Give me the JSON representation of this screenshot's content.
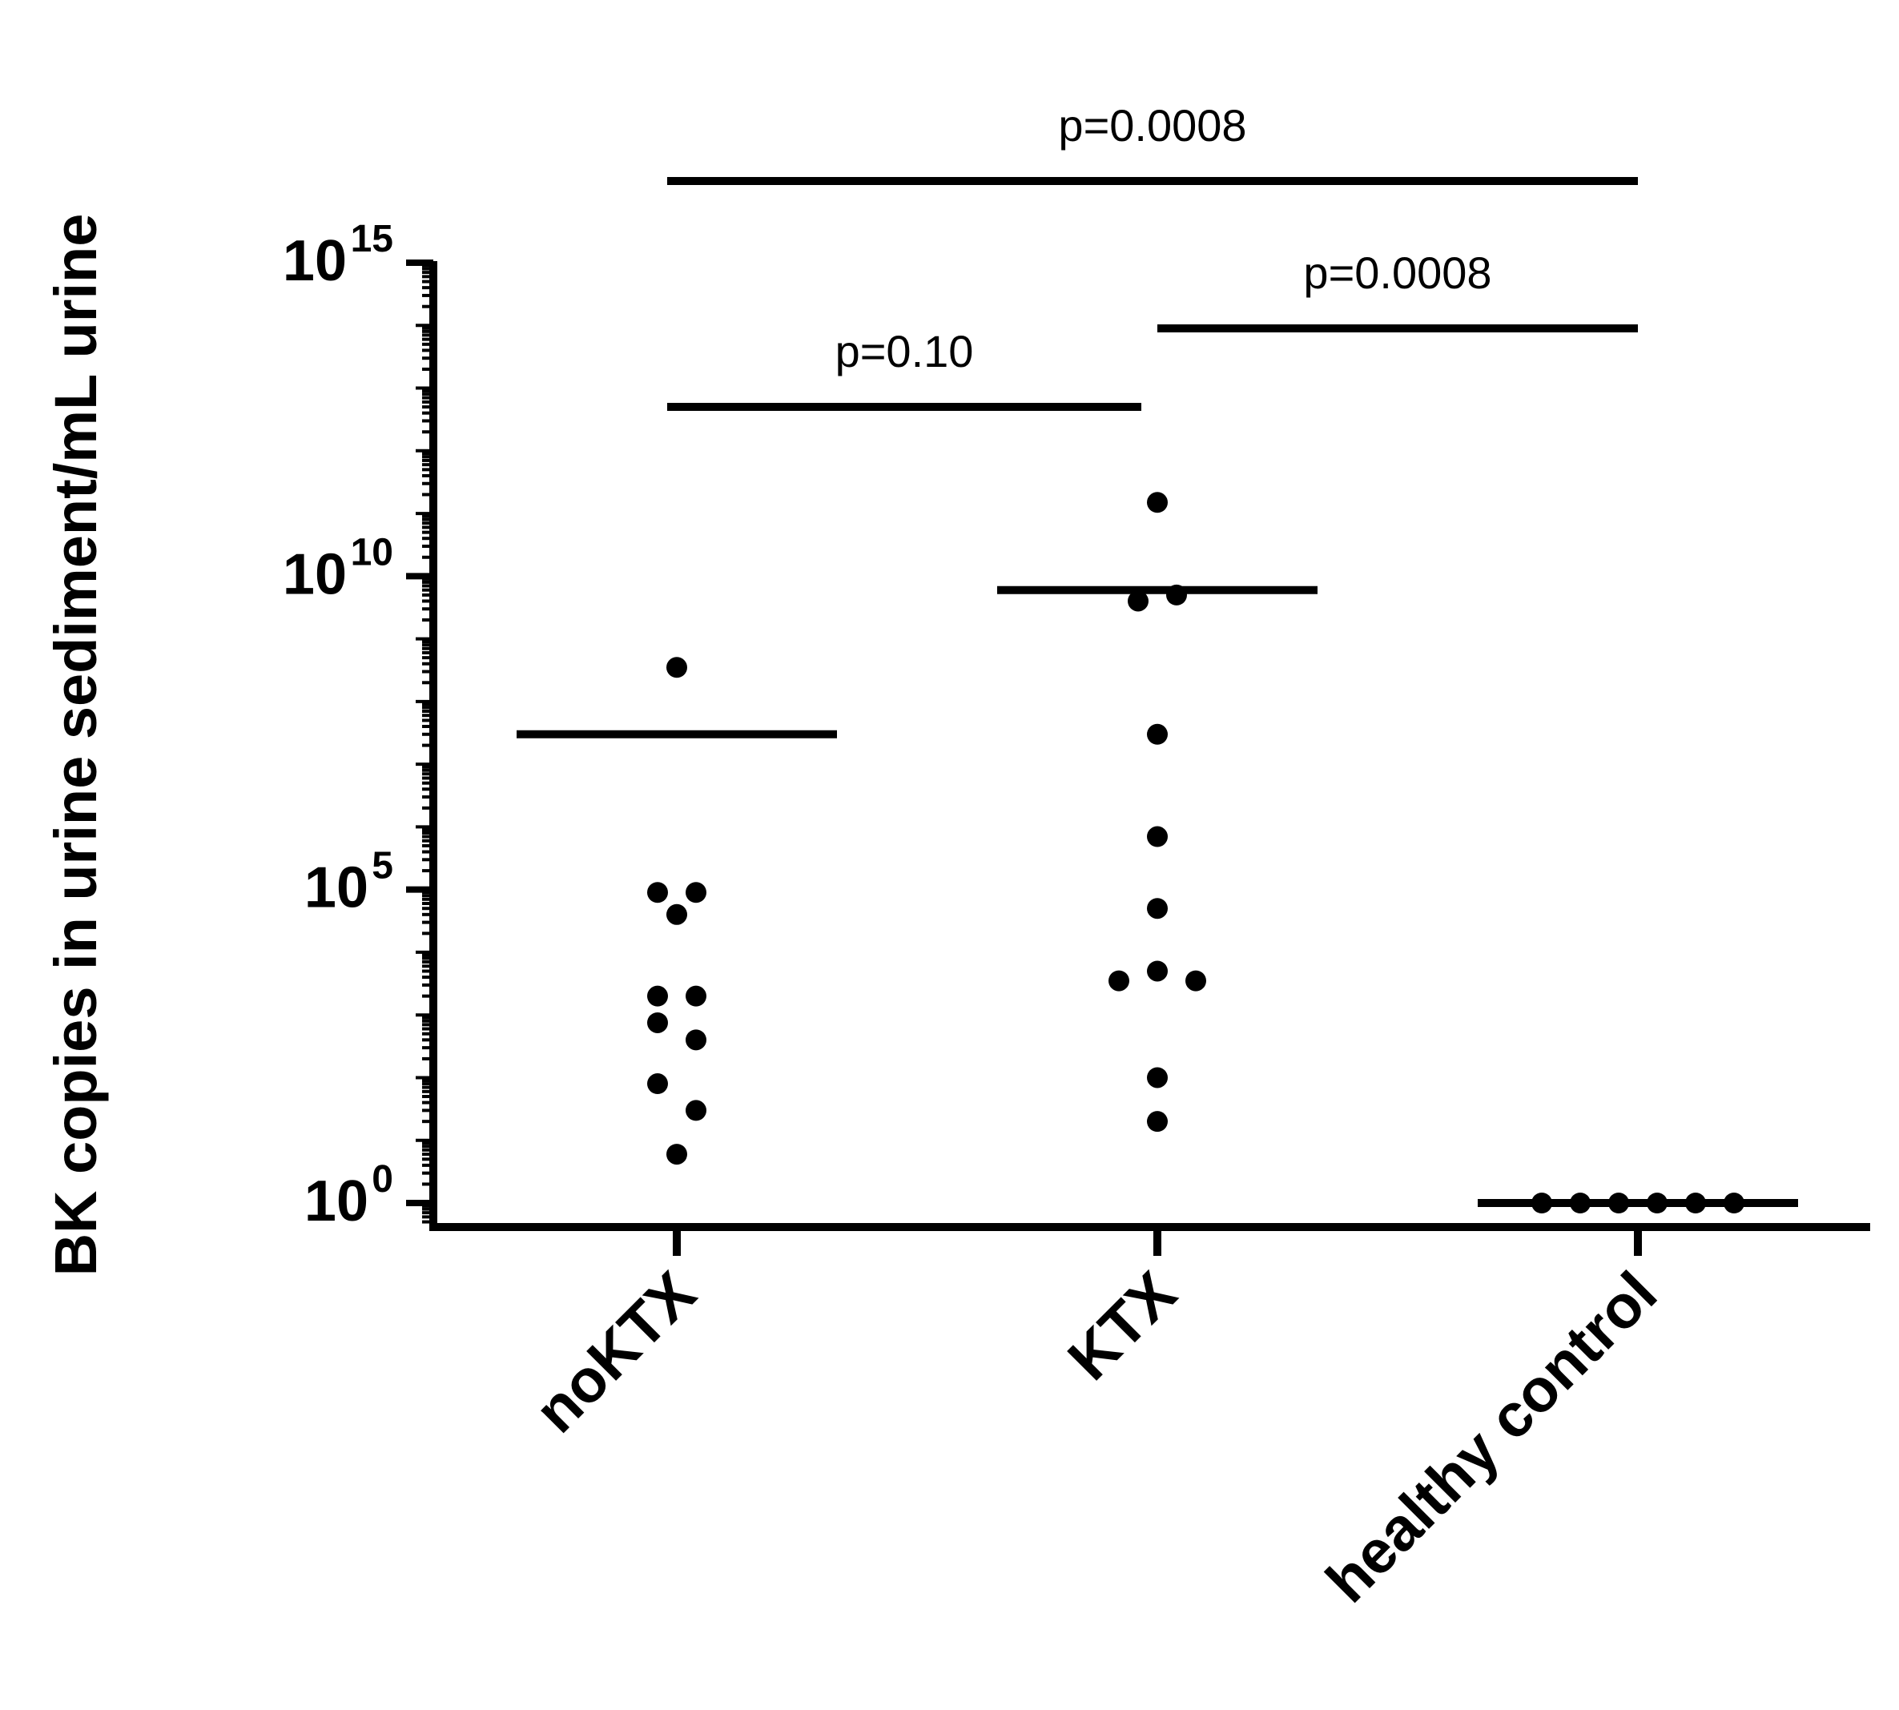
{
  "chart_data": {
    "type": "scatter",
    "ylabel": "BK copies in urine sediment/mL urine",
    "y_scale": "log",
    "ylim": [
      0.01,
      1000000000000000.0
    ],
    "yticks": [
      {
        "value": 1,
        "base": "10",
        "exp": "0"
      },
      {
        "value": 100000,
        "base": "10",
        "exp": "5"
      },
      {
        "value": 10000000000,
        "base": "10",
        "exp": "10"
      },
      {
        "value": 1000000000000000.0,
        "base": "10",
        "exp": "15"
      }
    ],
    "categories": [
      "noKTX",
      "KTX",
      "healthy control"
    ],
    "groups": [
      {
        "name": "noKTX",
        "points": [
          {
            "value": 350000000.0,
            "offset": 0
          },
          {
            "value": 90000,
            "offset": -1
          },
          {
            "value": 90000,
            "offset": 1
          },
          {
            "value": 40000,
            "offset": 0
          },
          {
            "value": 2000,
            "offset": -1
          },
          {
            "value": 2000,
            "offset": 1
          },
          {
            "value": 750,
            "offset": -1
          },
          {
            "value": 400,
            "offset": 1
          },
          {
            "value": 80,
            "offset": -1
          },
          {
            "value": 30,
            "offset": 1
          },
          {
            "value": 6,
            "offset": 0
          }
        ],
        "mean": 30000000.0
      },
      {
        "name": "KTX",
        "points": [
          {
            "value": 150000000000.0,
            "offset": 0
          },
          {
            "value": 4000000000.0,
            "offset": -1
          },
          {
            "value": 5000000000.0,
            "offset": 1
          },
          {
            "value": 30000000.0,
            "offset": 0
          },
          {
            "value": 700000,
            "offset": 0
          },
          {
            "value": 50000,
            "offset": 0
          },
          {
            "value": 5000,
            "offset": 0
          },
          {
            "value": 3500,
            "offset": -2
          },
          {
            "value": 3500,
            "offset": 2
          },
          {
            "value": 100,
            "offset": 0
          },
          {
            "value": 20,
            "offset": 0
          }
        ],
        "mean": 6000000000.0
      },
      {
        "name": "healthy control",
        "points": [
          {
            "value": 1,
            "offset": -5
          },
          {
            "value": 1,
            "offset": -3
          },
          {
            "value": 1,
            "offset": -1
          },
          {
            "value": 1,
            "offset": 1
          },
          {
            "value": 1,
            "offset": 3
          },
          {
            "value": 1,
            "offset": 5
          }
        ],
        "mean": 1
      }
    ],
    "annotations": [
      {
        "label": "p=0.10",
        "from": "noKTX",
        "to": "KTX",
        "level": 1
      },
      {
        "label": "p=0.0008",
        "from": "KTX",
        "to": "healthy control",
        "level": 2
      },
      {
        "label": "p=0.0008",
        "from": "noKTX",
        "to": "healthy control",
        "level": 3
      }
    ],
    "legend": "none",
    "grid": false
  }
}
